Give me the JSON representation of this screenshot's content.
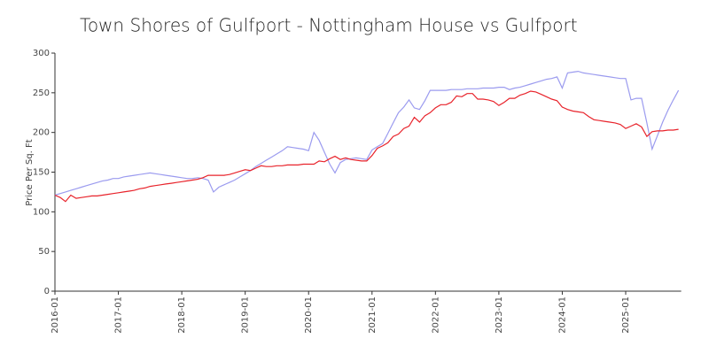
{
  "chart_data": {
    "type": "line",
    "title": "Town Shores of Gulfport - Nottingham House vs Gulfport",
    "y_label": "Price Per Sq. Ft",
    "x": [
      "2016-01",
      "2016-02",
      "2016-03",
      "2016-04",
      "2016-05",
      "2016-06",
      "2016-07",
      "2016-08",
      "2016-09",
      "2016-10",
      "2016-11",
      "2016-12",
      "2017-01",
      "2017-02",
      "2017-03",
      "2017-04",
      "2017-05",
      "2017-06",
      "2017-07",
      "2017-08",
      "2017-09",
      "2017-10",
      "2017-11",
      "2017-12",
      "2018-01",
      "2018-02",
      "2018-03",
      "2018-04",
      "2018-05",
      "2018-06",
      "2018-07",
      "2018-08",
      "2018-09",
      "2018-10",
      "2018-11",
      "2018-12",
      "2019-01",
      "2019-02",
      "2019-03",
      "2019-04",
      "2019-05",
      "2019-06",
      "2019-07",
      "2019-08",
      "2019-09",
      "2019-10",
      "2019-11",
      "2019-12",
      "2020-01",
      "2020-02",
      "2020-03",
      "2020-04",
      "2020-05",
      "2020-06",
      "2020-07",
      "2020-08",
      "2020-09",
      "2020-10",
      "2020-11",
      "2020-12",
      "2021-01",
      "2021-02",
      "2021-03",
      "2021-04",
      "2021-05",
      "2021-06",
      "2021-07",
      "2021-08",
      "2021-09",
      "2021-10",
      "2021-11",
      "2021-12",
      "2022-01",
      "2022-02",
      "2022-03",
      "2022-04",
      "2022-05",
      "2022-06",
      "2022-07",
      "2022-08",
      "2022-09",
      "2022-10",
      "2022-11",
      "2022-12",
      "2023-01",
      "2023-02",
      "2023-03",
      "2023-04",
      "2023-05",
      "2023-06",
      "2023-07",
      "2023-08",
      "2023-09",
      "2023-10",
      "2023-11",
      "2023-12",
      "2024-01",
      "2024-02",
      "2024-03",
      "2024-04",
      "2024-05",
      "2024-06",
      "2024-07",
      "2024-08",
      "2024-09",
      "2024-10",
      "2024-11",
      "2024-12",
      "2025-01",
      "2025-02",
      "2025-03",
      "2025-04",
      "2025-05",
      "2025-06",
      "2025-07",
      "2025-08",
      "2025-09",
      "2025-10",
      "2025-11"
    ],
    "series": [
      {
        "color": "#9b9bef",
        "values": [
          121,
          123,
          125,
          127,
          129,
          131,
          133,
          135,
          137,
          139,
          140,
          142,
          142,
          144,
          145,
          146,
          147,
          148,
          149,
          148,
          147,
          146,
          145,
          144,
          143,
          142,
          142,
          143,
          142,
          140,
          125,
          131,
          134,
          137,
          140,
          144,
          148,
          152,
          157,
          161,
          165,
          169,
          173,
          177,
          182,
          181,
          180,
          179,
          177,
          200,
          190,
          175,
          160,
          149,
          162,
          166,
          167,
          168,
          167,
          166,
          178,
          182,
          186,
          199,
          212,
          225,
          232,
          241,
          231,
          229,
          240,
          253,
          253,
          253,
          253,
          254,
          254,
          254,
          255,
          255,
          255,
          256,
          256,
          256,
          257,
          257,
          254,
          256,
          257,
          259,
          261,
          263,
          265,
          267,
          268,
          270,
          256,
          275,
          276,
          277,
          275,
          274,
          273,
          272,
          271,
          270,
          269,
          268,
          268,
          241,
          243,
          243,
          212,
          179,
          196,
          213,
          228,
          241,
          253
        ]
      },
      {
        "color": "#e8232b",
        "values": [
          121,
          118,
          113,
          121,
          117,
          118,
          119,
          120,
          120,
          121,
          122,
          123,
          124,
          125,
          126,
          127,
          129,
          130,
          132,
          133,
          134,
          135,
          136,
          137,
          138,
          139,
          140,
          141,
          143,
          146,
          146,
          146,
          146,
          147,
          149,
          151,
          153,
          152,
          155,
          158,
          157,
          157,
          158,
          158,
          159,
          159,
          159,
          160,
          160,
          160,
          164,
          163,
          167,
          170,
          166,
          168,
          166,
          165,
          164,
          164,
          171,
          180,
          183,
          187,
          195,
          198,
          205,
          208,
          219,
          213,
          221,
          225,
          231,
          235,
          235,
          238,
          246,
          245,
          249,
          249,
          242,
          242,
          241,
          239,
          234,
          238,
          243,
          243,
          247,
          249,
          252,
          251,
          248,
          245,
          242,
          240,
          232,
          229,
          227,
          226,
          225,
          220,
          216,
          215,
          214,
          213,
          212,
          210,
          205,
          208,
          211,
          207,
          195,
          201,
          202,
          202,
          203,
          203,
          204
        ]
      }
    ],
    "xticks": [
      "2016-01",
      "2017-01",
      "2018-01",
      "2019-01",
      "2020-01",
      "2021-01",
      "2022-01",
      "2023-01",
      "2024-01",
      "2025-01"
    ],
    "ylim": [
      0,
      300
    ],
    "yticks": [
      0,
      50,
      100,
      150,
      200,
      250,
      300
    ],
    "grid": false
  }
}
